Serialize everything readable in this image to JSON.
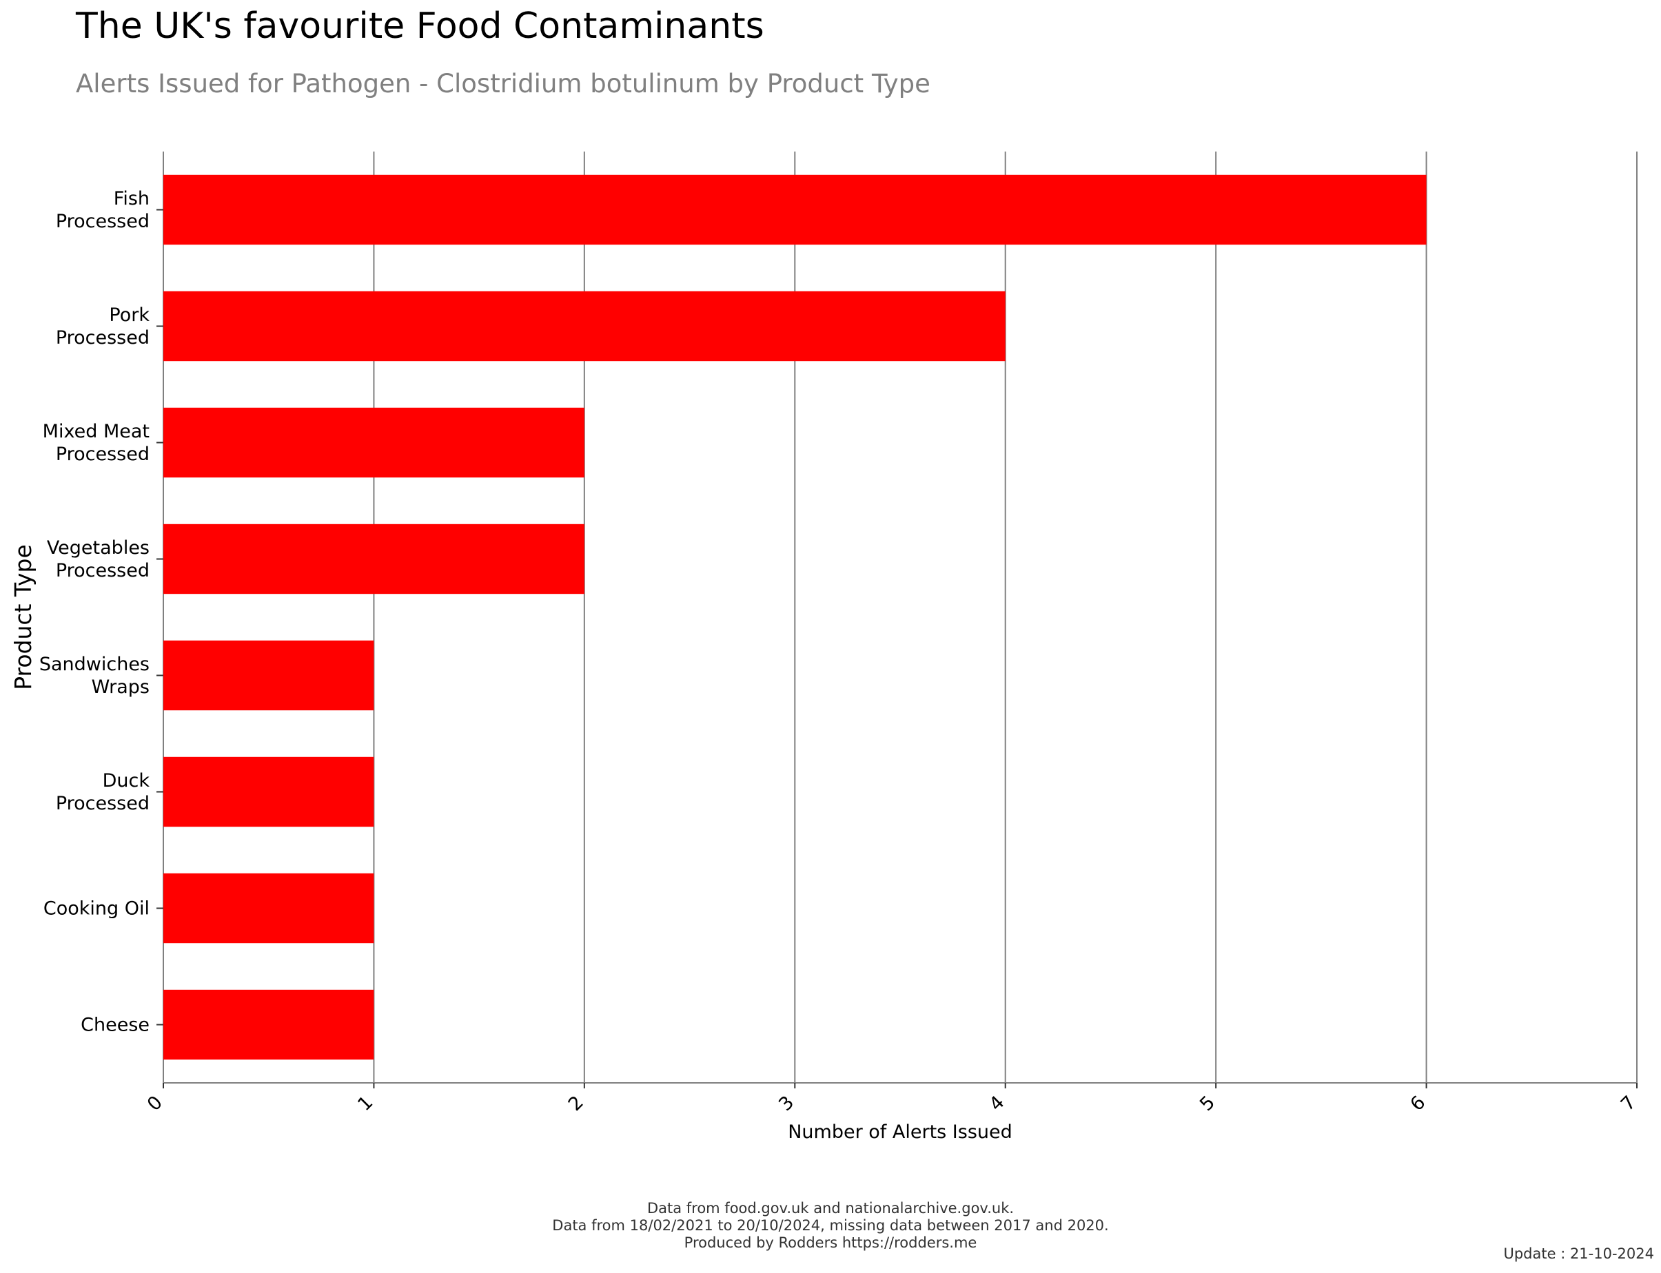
{
  "chart_data": {
    "type": "bar",
    "orientation": "horizontal",
    "title": "The UK's favourite Food Contaminants",
    "subtitle": "Alerts Issued for Pathogen - Clostridium botulinum by Product Type",
    "xlabel": "Number of Alerts Issued",
    "ylabel": "Product Type",
    "categories": [
      [
        "Fish",
        "Processed"
      ],
      [
        "Pork",
        "Processed"
      ],
      [
        "Mixed Meat",
        "Processed"
      ],
      [
        "Vegetables",
        "Processed"
      ],
      [
        "Sandwiches",
        "Wraps"
      ],
      [
        "Duck",
        "Processed"
      ],
      [
        "Cooking Oil"
      ],
      [
        "Cheese"
      ]
    ],
    "values": [
      6,
      4,
      2,
      2,
      1,
      1,
      1,
      1
    ],
    "xlim": [
      0,
      7
    ],
    "xticks": [
      "0",
      "1",
      "2",
      "3",
      "4",
      "5",
      "6",
      "7"
    ],
    "grid": "vertical",
    "bar_color": "#ff0000",
    "grid_color": "#808080"
  },
  "footer": {
    "line1": "Data from food.gov.uk and nationalarchive.gov.uk.",
    "line2": "Data from 18/02/2021 to 20/10/2024, missing data between 2017 and 2020.",
    "line3": "Produced by Rodders https://rodders.me",
    "update": "Update : 21-10-2024"
  }
}
